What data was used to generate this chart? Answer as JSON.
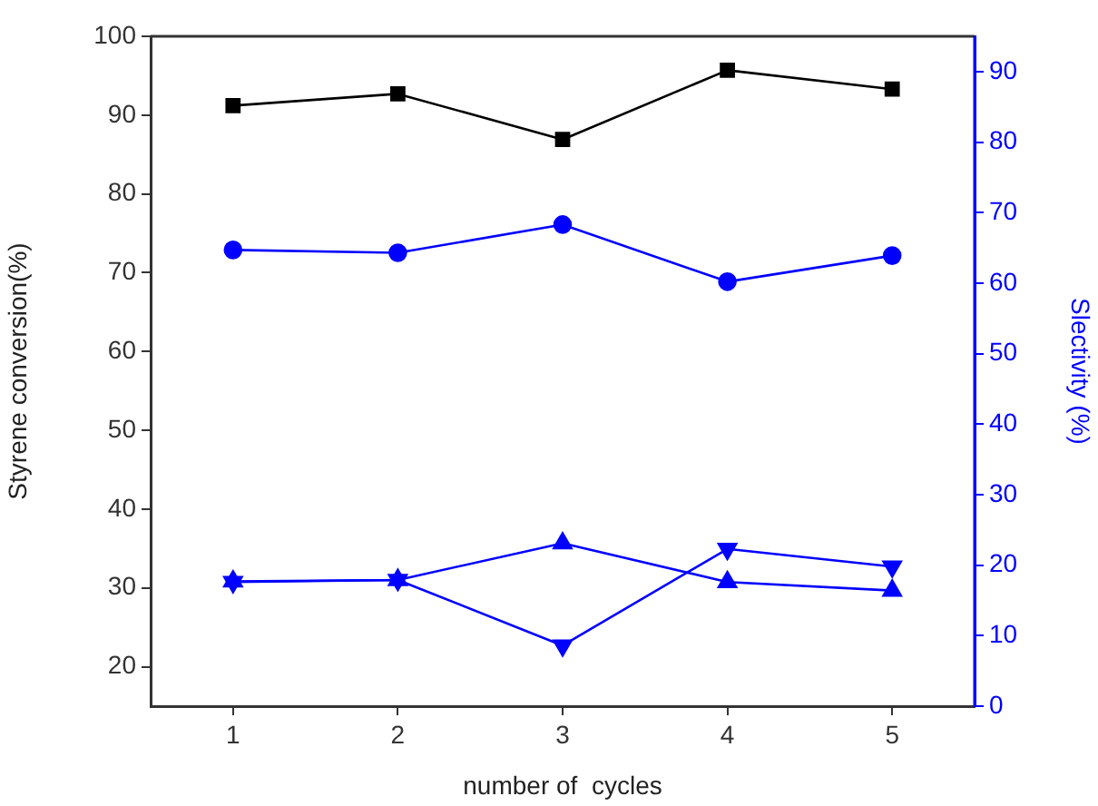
{
  "chart_data": {
    "type": "line",
    "xlabel": "number of  cycles",
    "ylabel": "Styrene conversion(%)",
    "y2label": "Slectivity (%)",
    "x": [
      1,
      2,
      3,
      4,
      5
    ],
    "xlim": [
      0.5,
      5.5
    ],
    "xticks": [
      1,
      2,
      3,
      4,
      5
    ],
    "ylim": [
      15,
      100
    ],
    "yticks": [
      20,
      30,
      40,
      50,
      60,
      70,
      80,
      90,
      100
    ],
    "y2lim": [
      0,
      95
    ],
    "y2ticks": [
      0,
      10,
      20,
      30,
      40,
      50,
      60,
      70,
      80,
      90
    ],
    "grid": false,
    "legend": false,
    "line_style": "solid",
    "series": [
      {
        "color": "#000000",
        "marker": "square",
        "values": [
          91.2,
          92.7,
          86.9,
          95.7,
          93.3
        ]
      },
      {
        "color": "#0000ff",
        "marker": "circle",
        "axis": "y2",
        "values": [
          64.7,
          64.3,
          68.3,
          60.2,
          63.9
        ]
      },
      {
        "color": "#0000ff",
        "marker": "triangle",
        "axis": "y2",
        "values": [
          17.7,
          17.9,
          23.1,
          17.6,
          16.4
        ]
      },
      {
        "color": "#0000ff",
        "marker": "triangle_down",
        "axis": "y2",
        "values": [
          17.6,
          17.9,
          8.6,
          22.3,
          19.8
        ]
      }
    ]
  }
}
